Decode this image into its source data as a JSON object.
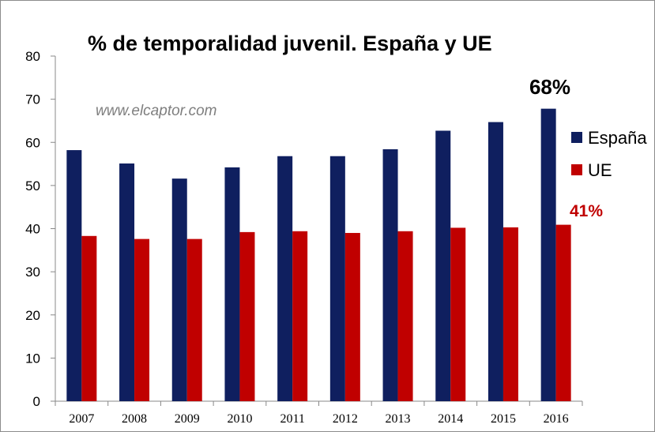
{
  "chart_data": {
    "type": "bar",
    "title": "% de temporalidad juvenil. España y UE",
    "watermark": "www.elcaptor.com",
    "categories": [
      "2007",
      "2008",
      "2009",
      "2010",
      "2011",
      "2012",
      "2013",
      "2014",
      "2015",
      "2016"
    ],
    "series": [
      {
        "name": "España",
        "color": "#0f1f5f",
        "values": [
          58.2,
          55.1,
          51.6,
          54.2,
          56.8,
          56.8,
          58.4,
          62.7,
          64.7,
          67.8
        ]
      },
      {
        "name": "UE",
        "color": "#c00000",
        "values": [
          38.3,
          37.6,
          37.6,
          39.2,
          39.4,
          39.0,
          39.4,
          40.2,
          40.3,
          40.9
        ]
      }
    ],
    "ylim": [
      0,
      80
    ],
    "yticks": [
      0,
      10,
      20,
      30,
      40,
      50,
      60,
      70,
      80
    ],
    "xlabel": "",
    "ylabel": "",
    "grid": false,
    "legend_position": "right",
    "annotations": {
      "espana_last": {
        "text": "68%",
        "color": "#000000"
      },
      "ue_last": {
        "text": "41%",
        "color": "#c00000"
      }
    }
  }
}
